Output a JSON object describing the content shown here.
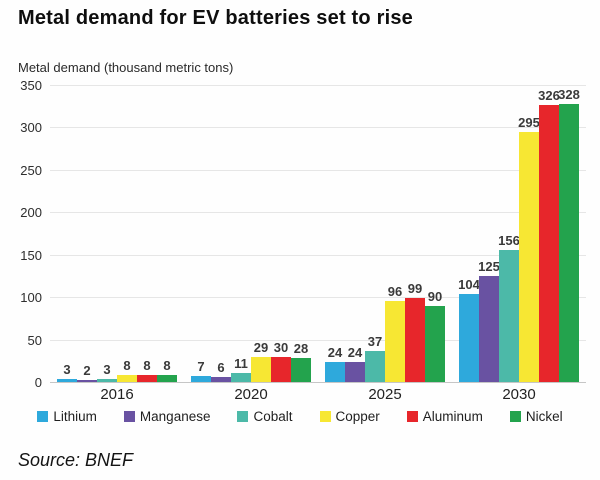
{
  "chart_data": {
    "type": "bar",
    "title": "Metal demand for EV batteries set to rise",
    "axis_unit_label": "Metal demand (thousand metric tons)",
    "categories": [
      "2016",
      "2020",
      "2025",
      "2030"
    ],
    "series": [
      {
        "name": "Lithium",
        "color": "#2EA9DC",
        "values": [
          3,
          7,
          24,
          104
        ]
      },
      {
        "name": "Manganese",
        "color": "#6952A2",
        "values": [
          2,
          6,
          24,
          125
        ]
      },
      {
        "name": "Cobalt",
        "color": "#4CB9A8",
        "values": [
          3,
          11,
          37,
          156
        ]
      },
      {
        "name": "Copper",
        "color": "#F7E733",
        "values": [
          8,
          29,
          96,
          295
        ]
      },
      {
        "name": "Aluminum",
        "color": "#E7262B",
        "values": [
          8,
          30,
          99,
          326
        ]
      },
      {
        "name": "Nickel",
        "color": "#23A34D",
        "values": [
          8,
          28,
          90,
          328
        ]
      }
    ],
    "ylim": [
      0,
      350
    ],
    "yticks": [
      0,
      50,
      100,
      150,
      200,
      250,
      300,
      350
    ],
    "grid": true,
    "legend_position": "bottom",
    "bar_value_labels_shown": true
  },
  "footer": {
    "source": "Source: BNEF"
  }
}
